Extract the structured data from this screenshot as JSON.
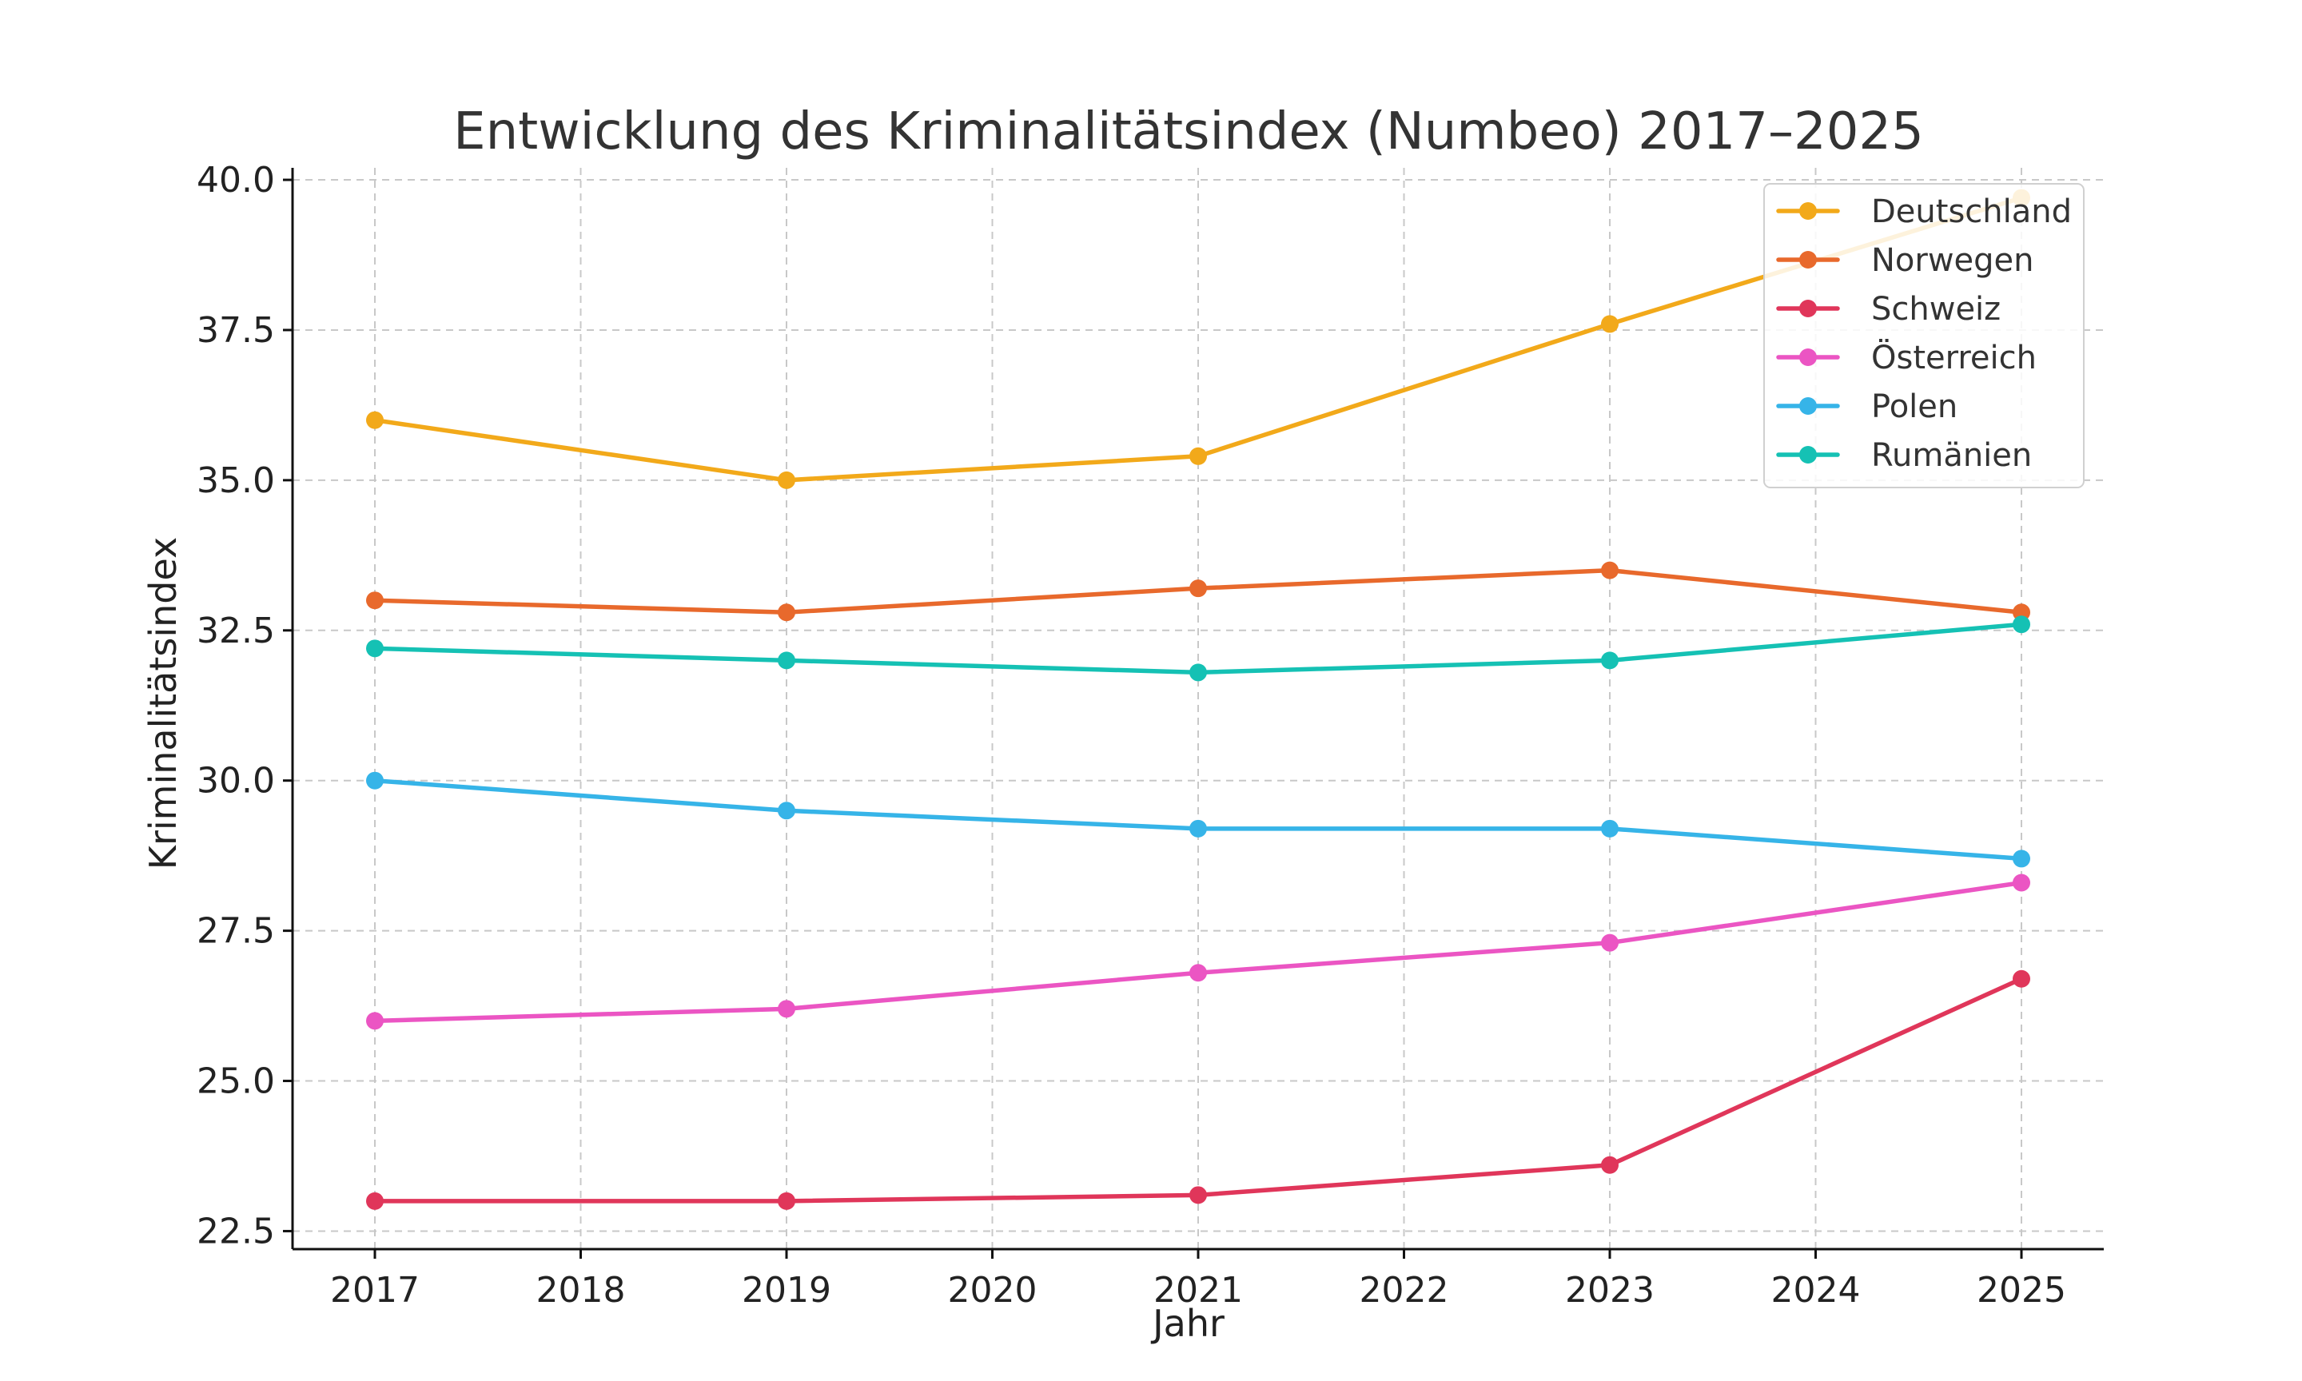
{
  "chart_data": {
    "type": "line",
    "title": "Entwicklung des Kriminalitätsindex (Numbeo) 2017–2025",
    "xlabel": "Jahr",
    "ylabel": "Kriminalitätsindex",
    "x": [
      2017,
      2019,
      2021,
      2023,
      2025
    ],
    "xlim": [
      2016.6,
      2025.4
    ],
    "ylim": [
      22.2,
      40.2
    ],
    "xticks": [
      2017,
      2018,
      2019,
      2020,
      2021,
      2022,
      2023,
      2024,
      2025
    ],
    "yticks": [
      22.5,
      25.0,
      27.5,
      30.0,
      32.5,
      35.0,
      37.5,
      40.0
    ],
    "xtick_labels": [
      "2017",
      "2018",
      "2019",
      "2020",
      "2021",
      "2022",
      "2023",
      "2024",
      "2025"
    ],
    "ytick_labels": [
      "22.5",
      "25.0",
      "27.5",
      "30.0",
      "32.5",
      "35.0",
      "37.5",
      "40.0"
    ],
    "grid": true,
    "legend_position": "top-right",
    "series": [
      {
        "name": "Deutschland",
        "color": "#F2A91A",
        "values": [
          36.0,
          35.0,
          35.4,
          37.6,
          39.7
        ]
      },
      {
        "name": "Norwegen",
        "color": "#E8692C",
        "values": [
          33.0,
          32.8,
          33.2,
          33.5,
          32.8
        ]
      },
      {
        "name": "Schweiz",
        "color": "#E0365A",
        "values": [
          23.0,
          23.0,
          23.1,
          23.6,
          26.7
        ]
      },
      {
        "name": "Österreich",
        "color": "#EB55C3",
        "values": [
          26.0,
          26.2,
          26.8,
          27.3,
          28.3
        ]
      },
      {
        "name": "Polen",
        "color": "#36B4E8",
        "values": [
          30.0,
          29.5,
          29.2,
          29.2,
          28.7
        ]
      },
      {
        "name": "Rumänien",
        "color": "#15C1B4",
        "values": [
          32.2,
          32.0,
          31.8,
          32.0,
          32.6
        ]
      }
    ]
  }
}
